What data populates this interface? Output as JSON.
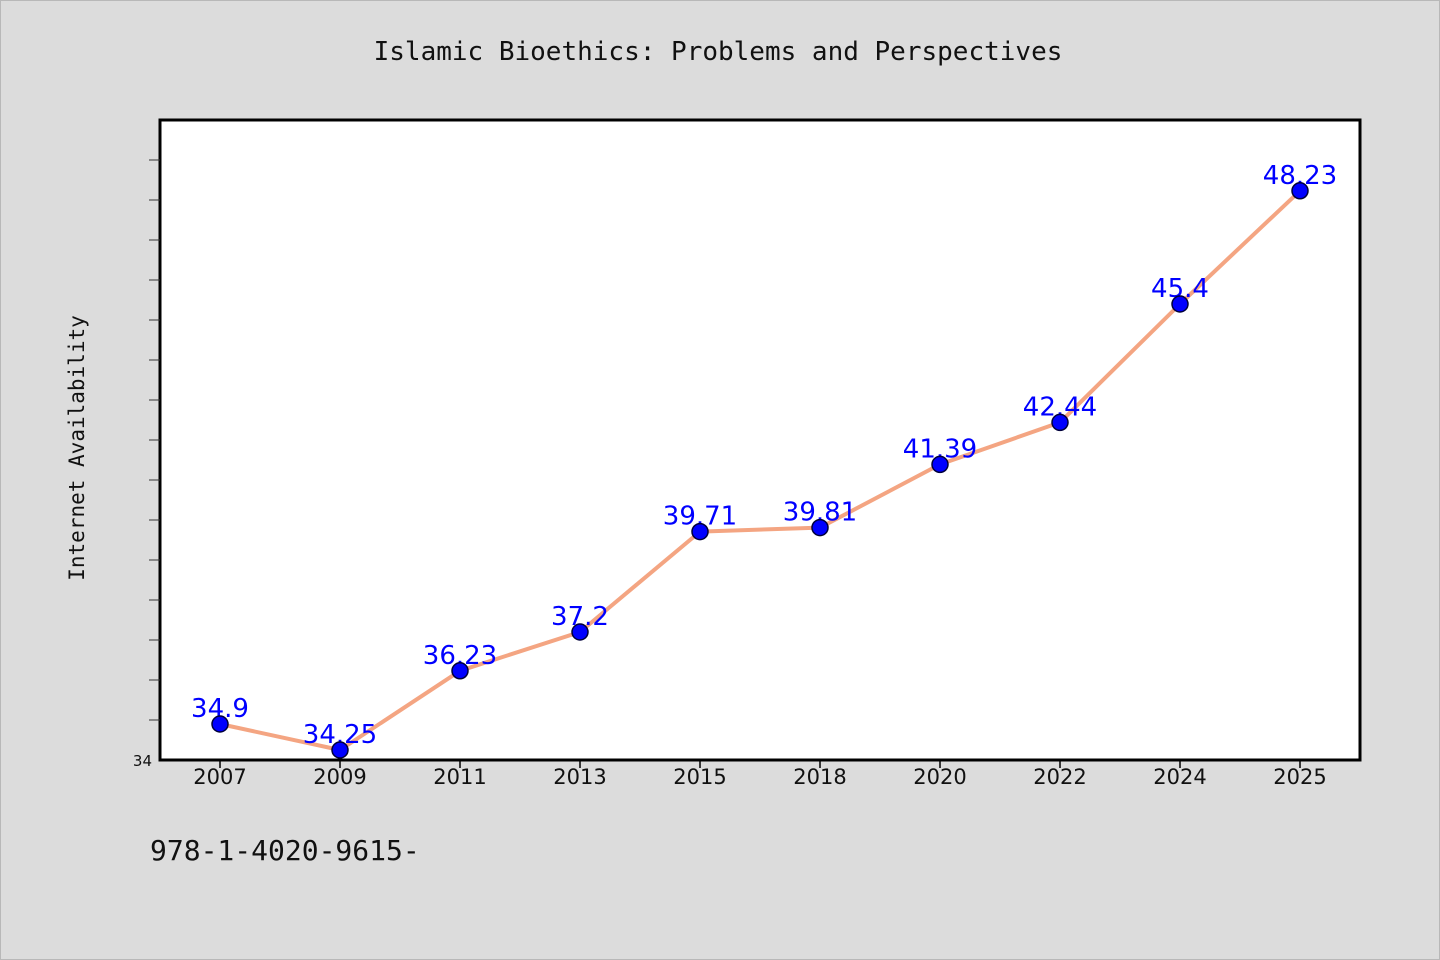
{
  "chart_data": {
    "type": "line",
    "title": "Islamic Bioethics: Problems and Perspectives",
    "xlabel": "",
    "ylabel": "Internet Availability",
    "categories": [
      "2007",
      "2009",
      "2011",
      "2013",
      "2015",
      "2018",
      "2020",
      "2022",
      "2024",
      "2025"
    ],
    "series": [
      {
        "values": [
          34.9,
          34.25,
          36.23,
          37.2,
          39.71,
          39.81,
          41.39,
          42.44,
          45.4,
          48.23
        ]
      }
    ],
    "data_labels": [
      "34.9",
      "34.25",
      "36.23",
      "37.2",
      "39.71",
      "39.81",
      "41.39",
      "42.44",
      "45.4",
      "48.23"
    ],
    "ylim": [
      34,
      50
    ],
    "y_tick_labels": [
      "34"
    ],
    "grid": false,
    "line_color": "#f4a582",
    "marker_color": "#0000ff",
    "label_color": "#0000ff"
  },
  "footer": {
    "text": "978-1-4020-9615-"
  }
}
